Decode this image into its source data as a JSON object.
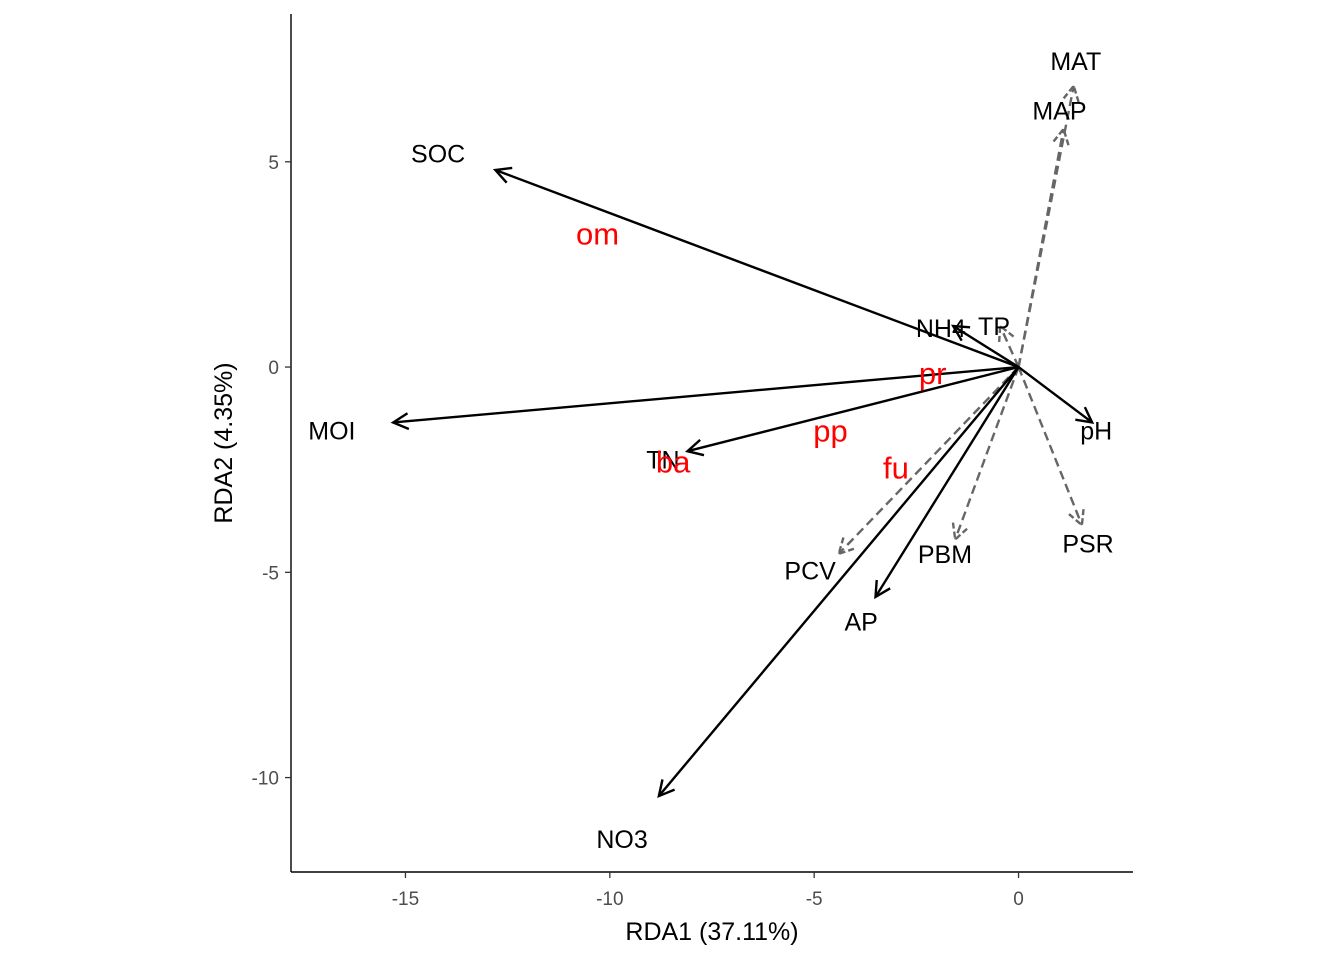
{
  "chart_data": {
    "type": "scatter",
    "subtype": "rda-biplot",
    "xlabel": "RDA1 (37.11%)",
    "ylabel": "RDA2 (4.35%)",
    "xlim": [
      -17.8,
      2.8
    ],
    "ylim": [
      -12.3,
      8.6
    ],
    "x_ticks": [
      -15,
      -10,
      -5,
      0
    ],
    "y_ticks": [
      -10,
      -5,
      0,
      5
    ],
    "x_tick_labels": [
      "-15",
      "-10",
      "-5",
      "0"
    ],
    "y_tick_labels": [
      "-10",
      "-5",
      "0",
      "5"
    ],
    "grid": false,
    "legend": "none",
    "solid_color": "#000000",
    "dashed_color": "#666666",
    "site_color": "#ff0000",
    "vectors_solid": [
      {
        "label": "SOC",
        "x": -12.8,
        "y": 4.8,
        "lx": -14.2,
        "ly": 5.2
      },
      {
        "label": "MOI",
        "x": -15.3,
        "y": -1.35,
        "lx": -16.8,
        "ly": -1.55
      },
      {
        "label": "TN",
        "x": -8.1,
        "y": -2.05,
        "lx": -8.7,
        "ly": -2.25
      },
      {
        "label": "NH4",
        "x": -1.6,
        "y": 1.0,
        "lx": -1.9,
        "ly": 0.95
      },
      {
        "label": "pH",
        "x": 1.8,
        "y": -1.35,
        "lx": 1.9,
        "ly": -1.55
      },
      {
        "label": "AP",
        "x": -3.5,
        "y": -5.6,
        "lx": -3.85,
        "ly": -6.2
      },
      {
        "label": "NO3",
        "x": -8.8,
        "y": -10.45,
        "lx": -9.7,
        "ly": -11.5
      }
    ],
    "vectors_dashed": [
      {
        "label": "MAT",
        "x": 1.35,
        "y": 6.85,
        "lx": 1.4,
        "ly": 7.45
      },
      {
        "label": "MAP",
        "x": 1.1,
        "y": 5.8,
        "lx": 1.0,
        "ly": 6.25
      },
      {
        "label": "TP",
        "x": -0.45,
        "y": 1.0,
        "lx": -0.6,
        "ly": 1.0
      },
      {
        "label": "PSR",
        "x": 1.55,
        "y": -3.85,
        "lx": 1.7,
        "ly": -4.3
      },
      {
        "label": "PBM",
        "x": -1.55,
        "y": -4.2,
        "lx": -1.8,
        "ly": -4.55
      },
      {
        "label": "PCV",
        "x": -4.4,
        "y": -4.55,
        "lx": -5.1,
        "ly": -4.95
      }
    ],
    "sites": [
      {
        "label": "om",
        "x": -10.3,
        "y": 3.25
      },
      {
        "label": "pr",
        "x": -2.1,
        "y": -0.15
      },
      {
        "label": "pp",
        "x": -4.6,
        "y": -1.55
      },
      {
        "label": "ba",
        "x": -8.45,
        "y": -2.3
      },
      {
        "label": "fu",
        "x": -3.0,
        "y": -2.45
      }
    ]
  }
}
